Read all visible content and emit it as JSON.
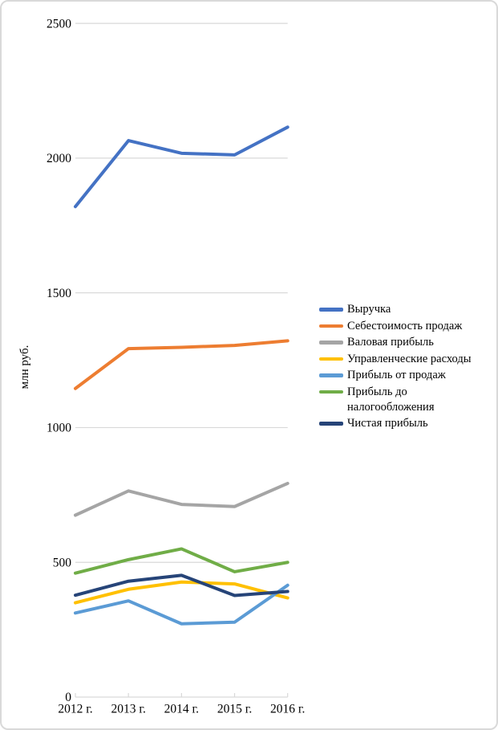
{
  "chart_data": {
    "type": "line",
    "categories": [
      "2012 г.",
      "2013 г.",
      "2014 г.",
      "2015 г.",
      "2016 г."
    ],
    "series": [
      {
        "name": "Выручка",
        "color": "#4472C4",
        "values": [
          1820,
          2065,
          2018,
          2012,
          2115
        ]
      },
      {
        "name": "Себестоимость продаж",
        "color": "#ED7D31",
        "values": [
          1145,
          1293,
          1298,
          1305,
          1322
        ]
      },
      {
        "name": "Валовая прибыль",
        "color": "#A5A5A5",
        "values": [
          675,
          765,
          715,
          707,
          793
        ]
      },
      {
        "name": "Управленческие расходы",
        "color": "#FFC000",
        "values": [
          350,
          400,
          427,
          420,
          368
        ]
      },
      {
        "name": "Прибыль от продаж",
        "color": "#5B9BD5",
        "values": [
          312,
          357,
          272,
          278,
          415
        ]
      },
      {
        "name": "Прибыль до налогообложения",
        "color": "#70AD47",
        "values": [
          460,
          510,
          550,
          465,
          500
        ]
      },
      {
        "name": "Чистая прибыль",
        "color": "#264478",
        "values": [
          378,
          430,
          452,
          377,
          392
        ]
      }
    ],
    "title": "",
    "xlabel": "",
    "ylabel": "млн руб.",
    "ylim": [
      0,
      2500
    ],
    "ytick_step": 500,
    "yticks": [
      "0",
      "500",
      "1000",
      "1500",
      "2000",
      "2500"
    ],
    "grid": true,
    "legend_position": "right",
    "gridline_color": "#D9D9D9",
    "axis_line_color": "#D9D9D9",
    "text_color": "#000000"
  }
}
